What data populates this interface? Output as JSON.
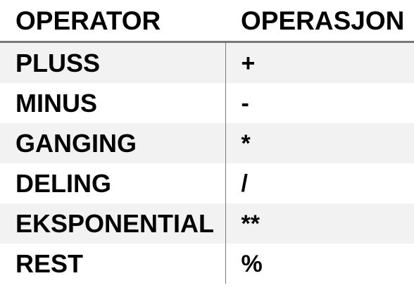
{
  "table": {
    "headers": {
      "operator": "OPERATOR",
      "operasjon": "OPERASJON"
    },
    "rows": [
      {
        "operator": "PLUSS",
        "operasjon": "+"
      },
      {
        "operator": "MINUS",
        "operasjon": "-"
      },
      {
        "operator": "GANGING",
        "operasjon": "*"
      },
      {
        "operator": "DELING",
        "operasjon": "/"
      },
      {
        "operator": "EKSPONENTIAL",
        "operasjon": "**"
      },
      {
        "operator": "REST",
        "operasjon": "%"
      }
    ]
  },
  "colors": {
    "shaded_row": "#f2f2f2",
    "plain_row": "#ffffff",
    "header_rule": "#777777",
    "column_divider": "#7a7a7a",
    "text": "#000000"
  }
}
